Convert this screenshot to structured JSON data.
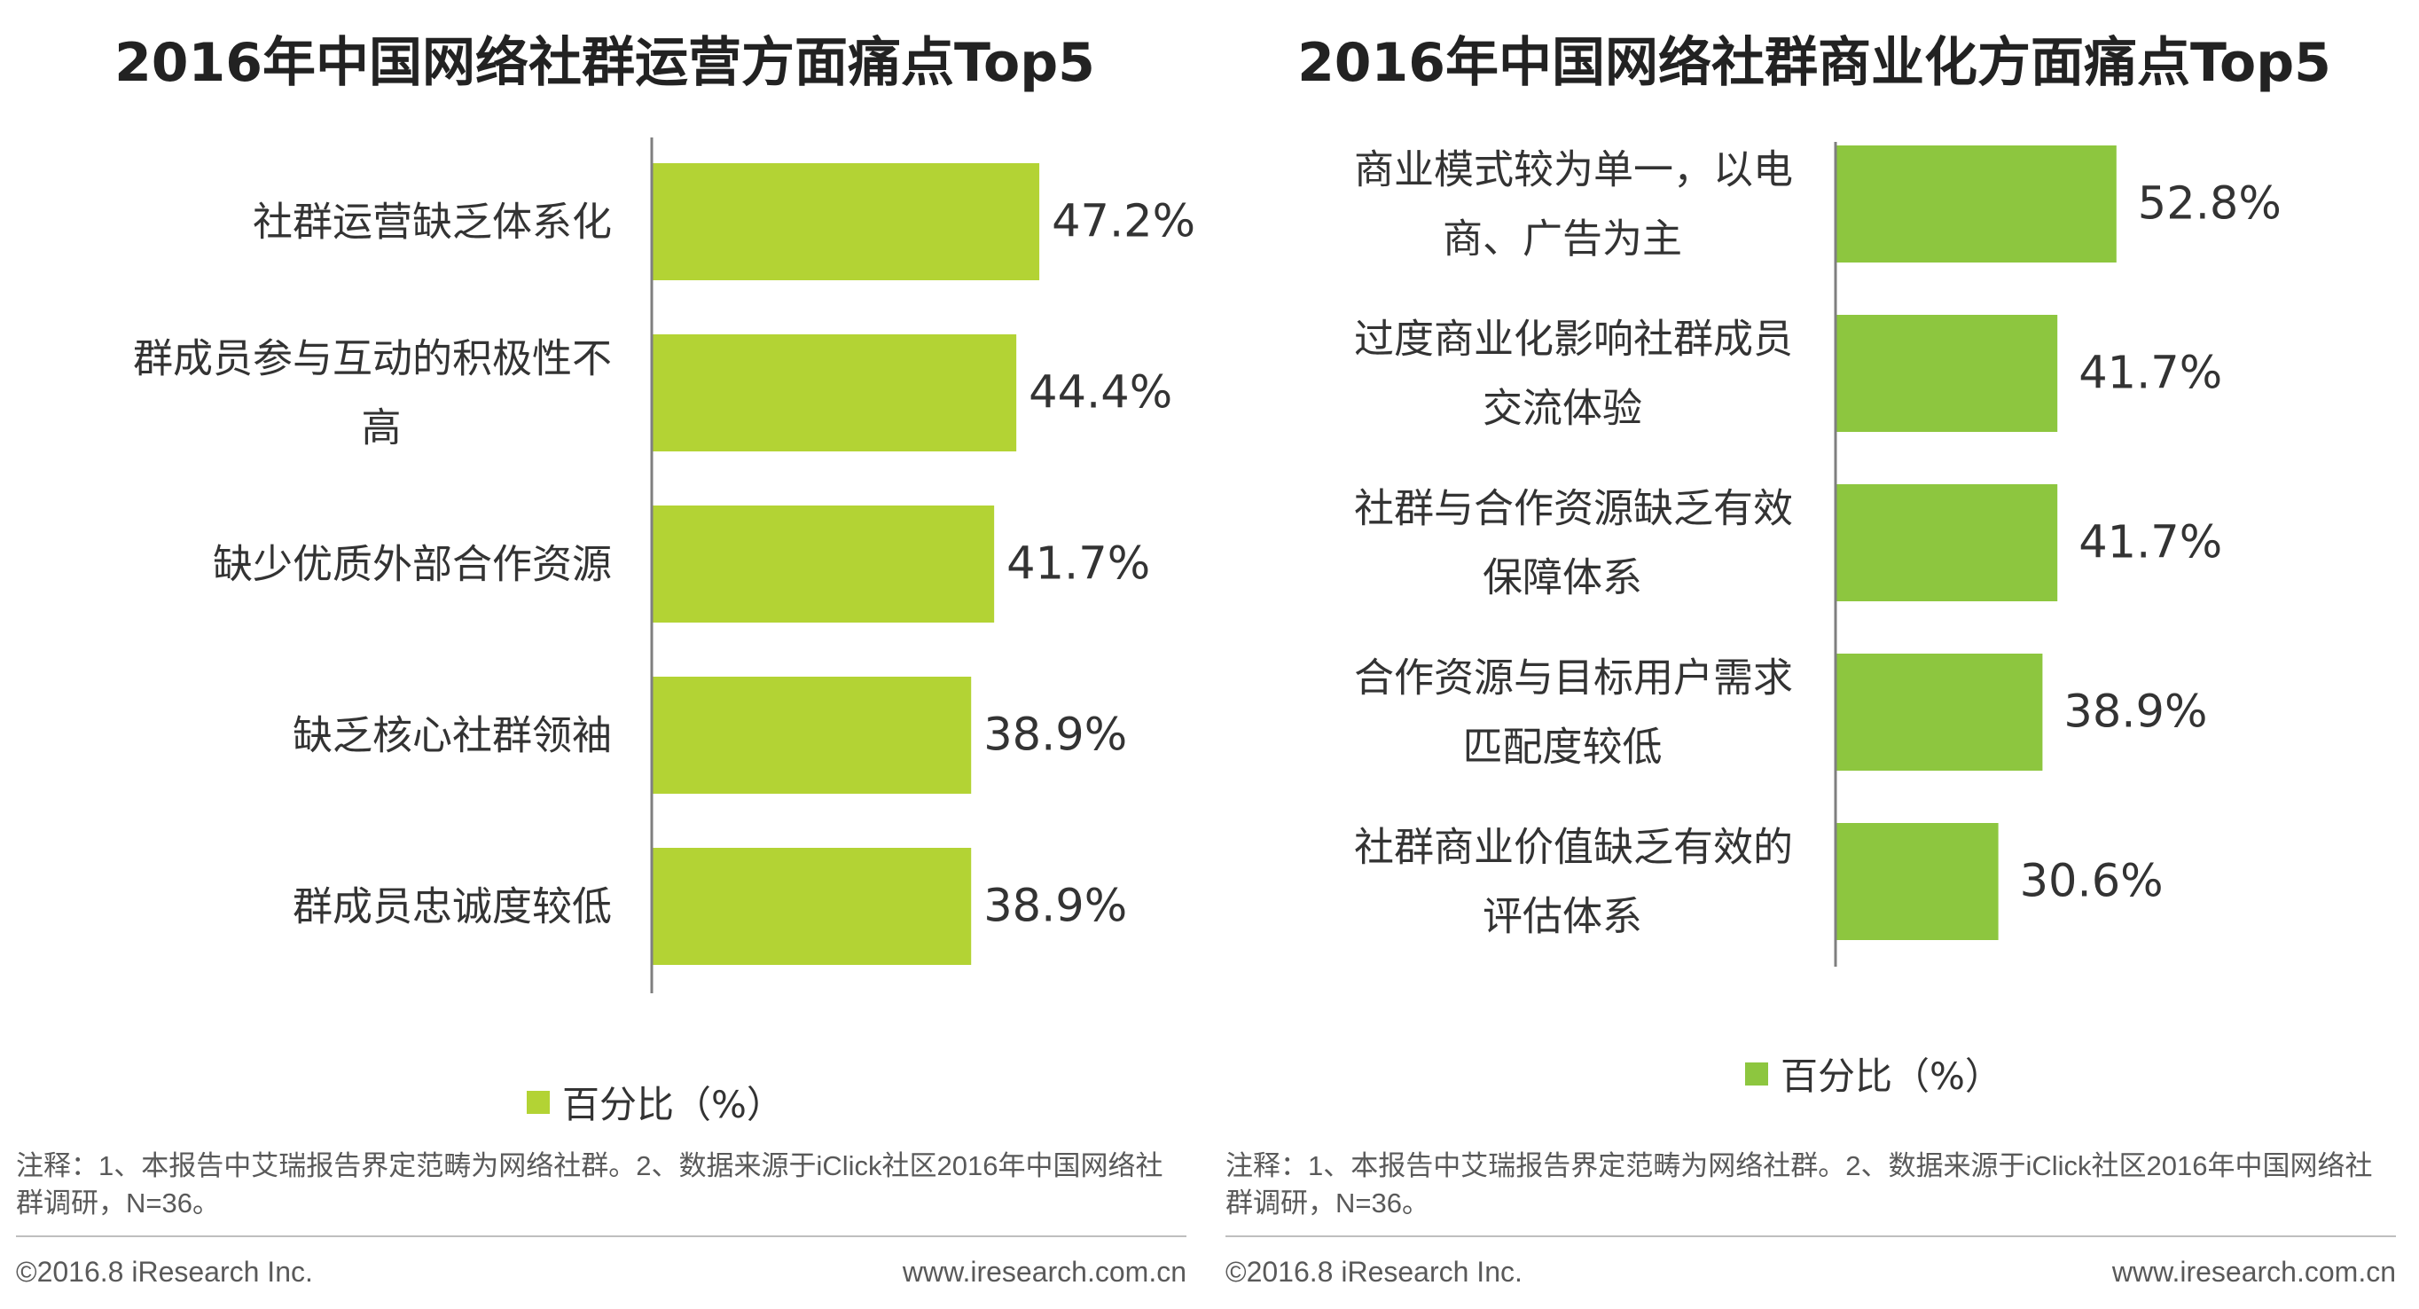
{
  "chart_data": [
    {
      "type": "bar",
      "orientation": "horizontal",
      "title": "2016年中国网络社群运营方面痛点Top5",
      "categories": [
        [
          "社群运营缺乏体系化"
        ],
        [
          "群成员参与互动的积极性不",
          "高"
        ],
        [
          "缺少优质外部合作资源"
        ],
        [
          "缺乏核心社群领袖"
        ],
        [
          "群成员忠诚度较低"
        ]
      ],
      "values": [
        47.2,
        44.4,
        41.7,
        38.9,
        38.9
      ],
      "value_labels": [
        "47.2%",
        "44.4%",
        "41.7%",
        "38.9%",
        "38.9%"
      ],
      "series": [
        {
          "name": "百分比（%）",
          "color": "#b3d334"
        }
      ],
      "legend": "bottom",
      "grid": false
    },
    {
      "type": "bar",
      "orientation": "horizontal",
      "title": "2016年中国网络社群商业化方面痛点Top5",
      "categories": [
        [
          "商业模式较为单一，以电",
          "商、广告为主"
        ],
        [
          "过度商业化影响社群成员",
          "交流体验"
        ],
        [
          "社群与合作资源缺乏有效",
          "保障体系"
        ],
        [
          "合作资源与目标用户需求",
          "匹配度较低"
        ],
        [
          "社群商业价值缺乏有效的",
          "评估体系"
        ]
      ],
      "values": [
        52.8,
        41.7,
        41.7,
        38.9,
        30.6
      ],
      "value_labels": [
        "52.8%",
        "41.7%",
        "41.7%",
        "38.9%",
        "30.6%"
      ],
      "series": [
        {
          "name": "百分比（%）",
          "color": "#8dc63f"
        }
      ],
      "legend": "bottom",
      "grid": false
    }
  ],
  "note": "注释：1、本报告中艾瑞报告界定范畴为网络社群。2、数据来源于iClick社区2016年中国网络社群调研，N=36。",
  "footer": {
    "copyright": "©2016.8 iResearch Inc.",
    "website": "www.iresearch.com.cn"
  }
}
